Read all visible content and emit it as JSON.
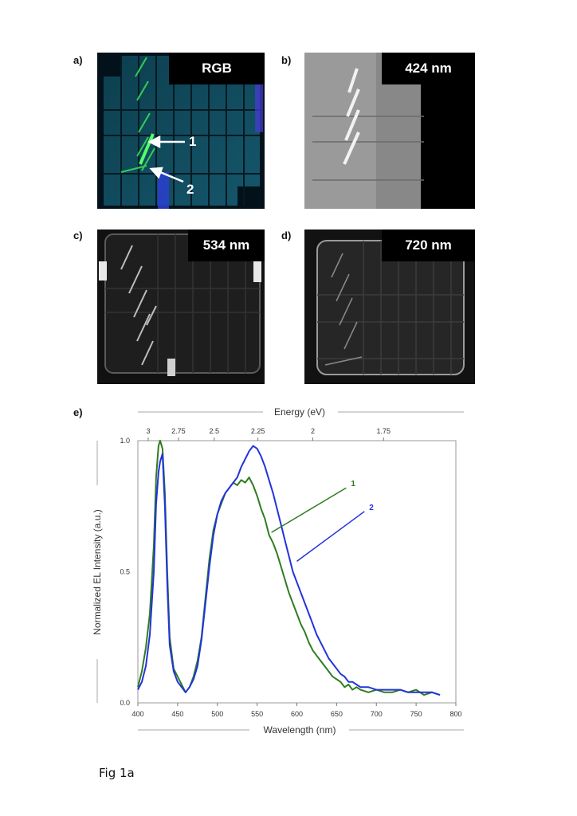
{
  "panels": {
    "a": {
      "letter": "a)",
      "tag": "RGB",
      "arrow1": "1",
      "arrow2": "2"
    },
    "b": {
      "letter": "b)",
      "tag": "424 nm"
    },
    "c": {
      "letter": "c)",
      "tag": "534 nm"
    },
    "d": {
      "letter": "d)",
      "tag": "720 nm"
    },
    "e": {
      "letter": "e)"
    }
  },
  "caption": "Fig 1a",
  "colors": {
    "series1": "#2e7d1f",
    "series2": "#2233dd",
    "tag_bg": "#000000"
  },
  "chart_data": {
    "type": "line",
    "xlabel": "Wavelength (nm)",
    "ylabel": "Normalized EL Intensity (a.u.)",
    "top_axis_label": "Energy (eV)",
    "xlim": [
      400,
      800
    ],
    "ylim": [
      0,
      1
    ],
    "xticks": [
      400,
      450,
      500,
      550,
      600,
      650,
      700,
      750,
      800
    ],
    "yticks": [
      0,
      0.5,
      1
    ],
    "ytick_labels": [
      "0.0",
      "0.5",
      "1.0"
    ],
    "top_ticks": [
      {
        "label": "3",
        "wavelength": 413
      },
      {
        "label": "2.75",
        "wavelength": 451
      },
      {
        "label": "2.5",
        "wavelength": 496
      },
      {
        "label": "2.25",
        "wavelength": 551
      },
      {
        "label": "2",
        "wavelength": 620
      },
      {
        "label": "1.75",
        "wavelength": 709
      }
    ],
    "grid": false,
    "series": [
      {
        "name": "1",
        "color": "#2e7d1f",
        "x": [
          400,
          405,
          410,
          415,
          420,
          423,
          426,
          428,
          431,
          434,
          437,
          440,
          445,
          450,
          455,
          460,
          465,
          470,
          475,
          480,
          485,
          490,
          495,
          500,
          505,
          510,
          515,
          520,
          525,
          530,
          535,
          540,
          545,
          550,
          555,
          560,
          565,
          570,
          575,
          580,
          585,
          590,
          595,
          600,
          605,
          610,
          615,
          620,
          625,
          630,
          635,
          640,
          645,
          650,
          655,
          660,
          665,
          670,
          675,
          680,
          690,
          700,
          710,
          720,
          730,
          740,
          750,
          760,
          770,
          780
        ],
        "y": [
          0.06,
          0.12,
          0.21,
          0.34,
          0.6,
          0.86,
          0.98,
          1.0,
          0.97,
          0.8,
          0.5,
          0.25,
          0.13,
          0.1,
          0.07,
          0.04,
          0.06,
          0.1,
          0.16,
          0.25,
          0.4,
          0.55,
          0.66,
          0.72,
          0.76,
          0.8,
          0.82,
          0.84,
          0.83,
          0.85,
          0.84,
          0.86,
          0.83,
          0.79,
          0.74,
          0.7,
          0.64,
          0.61,
          0.57,
          0.52,
          0.47,
          0.42,
          0.38,
          0.34,
          0.3,
          0.27,
          0.23,
          0.2,
          0.18,
          0.16,
          0.14,
          0.12,
          0.1,
          0.09,
          0.08,
          0.06,
          0.07,
          0.05,
          0.06,
          0.05,
          0.04,
          0.05,
          0.04,
          0.04,
          0.05,
          0.04,
          0.05,
          0.03,
          0.04,
          0.03
        ]
      },
      {
        "name": "2",
        "color": "#2233dd",
        "x": [
          400,
          405,
          410,
          415,
          420,
          423,
          426,
          428,
          431,
          434,
          437,
          440,
          445,
          450,
          455,
          460,
          465,
          470,
          475,
          480,
          485,
          490,
          495,
          500,
          505,
          510,
          515,
          520,
          525,
          530,
          535,
          540,
          545,
          550,
          555,
          560,
          565,
          570,
          575,
          580,
          585,
          590,
          595,
          600,
          605,
          610,
          615,
          620,
          625,
          630,
          635,
          640,
          645,
          650,
          655,
          660,
          665,
          670,
          675,
          680,
          690,
          700,
          710,
          720,
          730,
          740,
          750,
          760,
          770,
          780
        ],
        "y": [
          0.05,
          0.08,
          0.14,
          0.26,
          0.5,
          0.76,
          0.88,
          0.92,
          0.95,
          0.75,
          0.45,
          0.22,
          0.12,
          0.08,
          0.06,
          0.04,
          0.06,
          0.09,
          0.14,
          0.24,
          0.38,
          0.52,
          0.64,
          0.72,
          0.77,
          0.8,
          0.82,
          0.84,
          0.86,
          0.9,
          0.93,
          0.96,
          0.98,
          0.97,
          0.94,
          0.9,
          0.85,
          0.8,
          0.74,
          0.68,
          0.62,
          0.56,
          0.5,
          0.46,
          0.42,
          0.38,
          0.34,
          0.3,
          0.26,
          0.23,
          0.2,
          0.17,
          0.15,
          0.13,
          0.11,
          0.1,
          0.08,
          0.08,
          0.07,
          0.06,
          0.06,
          0.05,
          0.05,
          0.05,
          0.05,
          0.04,
          0.04,
          0.04,
          0.04,
          0.03
        ]
      }
    ],
    "annotations": [
      {
        "label": "1",
        "color": "#2e7d1f",
        "line_from": [
          568,
          0.65
        ],
        "line_to": [
          662,
          0.82
        ]
      },
      {
        "label": "2",
        "color": "#2233dd",
        "line_from": [
          600,
          0.54
        ],
        "line_to": [
          685,
          0.73
        ]
      }
    ]
  }
}
